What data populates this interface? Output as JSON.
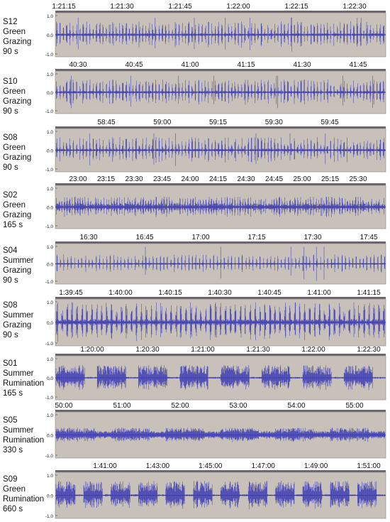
{
  "chart_data": [
    {
      "type": "waveform",
      "label": [
        "S12",
        "Green",
        "Grazing",
        "90 s"
      ],
      "ticks": [
        "1:21:15",
        "1:21:30",
        "1:21:45",
        "1:22:00",
        "1:22:15",
        "1:22:30"
      ],
      "yticks": [
        "1.0",
        "0.0",
        "-1.0"
      ],
      "ylim": [
        -1.0,
        1.0
      ]
    },
    {
      "type": "waveform",
      "label": [
        "S10",
        "Green",
        "Grazing",
        "90 s"
      ],
      "ticks": [
        "40:30",
        "40:45",
        "41:00",
        "41:15",
        "41:30",
        "41:45"
      ],
      "yticks": [
        "1.0",
        "0.0",
        "-1.0"
      ],
      "ylim": [
        -1.0,
        1.0
      ]
    },
    {
      "type": "waveform",
      "label": [
        "S08",
        "Green",
        "Grazing",
        "90 s"
      ],
      "ticks": [
        "58:45",
        "59:00",
        "59:15",
        "59:30",
        "59:45"
      ],
      "yticks": [
        "1.0",
        "0.0",
        "-1.0"
      ],
      "ylim": [
        -1.0,
        1.0
      ]
    },
    {
      "type": "waveform",
      "label": [
        "S02",
        "Green",
        "Grazing",
        "165 s"
      ],
      "ticks": [
        "23:00",
        "23:15",
        "23:30",
        "23:45",
        "24:00",
        "24:15",
        "24:30",
        "24:45",
        "25:00",
        "25:15",
        "25:30"
      ],
      "yticks": [
        "1.0",
        "0.0",
        "-1.0"
      ],
      "ylim": [
        -1.0,
        1.0
      ]
    },
    {
      "type": "waveform",
      "label": [
        "S04",
        "Summer",
        "Grazing",
        "90 s"
      ],
      "ticks": [
        "16:30",
        "16:45",
        "17:00",
        "17:15",
        "17:30",
        "17:45"
      ],
      "yticks": [
        "1.0",
        "0.0",
        "-1.0"
      ],
      "ylim": [
        -1.0,
        1.0
      ]
    },
    {
      "type": "waveform",
      "label": [
        "S08",
        "Summer",
        "Grazing",
        "90 s"
      ],
      "ticks": [
        "1:39:45",
        "1:40:00",
        "1:40:15",
        "1:40:30",
        "1:40:45",
        "1:41:00",
        "1:41:15"
      ],
      "yticks": [
        "1.0",
        "0.0",
        "-1.0"
      ],
      "ylim": [
        -1.0,
        1.0
      ]
    },
    {
      "type": "waveform",
      "label": [
        "S01",
        "Summer",
        "Rumination",
        "165 s"
      ],
      "ticks": [
        "1:20:00",
        "1:20:30",
        "1:21:00",
        "1:21:30",
        "1:22:00",
        "1:22:30"
      ],
      "yticks": [
        "1.0",
        "0.0",
        "-1.0"
      ],
      "ylim": [
        -1.0,
        1.0
      ]
    },
    {
      "type": "waveform",
      "label": [
        "S05",
        "Summer",
        "Rumination",
        "330 s"
      ],
      "ticks": [
        "50:00",
        "51:00",
        "52:00",
        "53:00",
        "54:00",
        "55:00"
      ],
      "yticks": [
        "1.0",
        "0.0",
        "-1.0"
      ],
      "ylim": [
        -1.0,
        1.0
      ]
    },
    {
      "type": "waveform",
      "label": [
        "S09",
        "Green",
        "Rumination",
        "660 s"
      ],
      "ticks": [
        "1:41:00",
        "1:43:00",
        "1:45:00",
        "1:47:00",
        "1:49:00",
        "1:51:00"
      ],
      "yticks": [
        "1.0",
        "0.0",
        "-1.0"
      ],
      "ylim": [
        -1.0,
        1.0
      ]
    }
  ],
  "colors": {
    "panel_bg": "#c8c1ba",
    "wave": "#3a3ab4",
    "topbar": "#6b6470",
    "text": "#111111"
  }
}
